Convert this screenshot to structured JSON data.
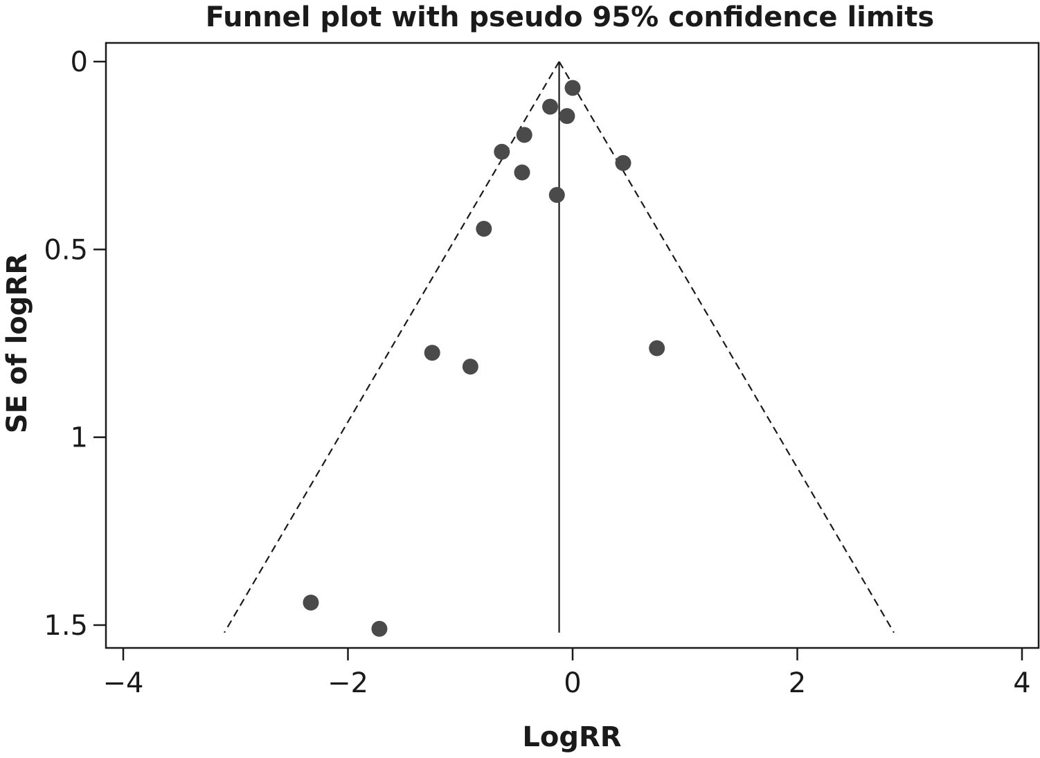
{
  "chart_data": {
    "type": "scatter",
    "title": "Funnel plot with pseudo 95% confidence limits",
    "xlabel": "LogRR",
    "ylabel": "SE of logRR",
    "xlim": [
      -4,
      4
    ],
    "ylim": [
      0,
      1.5
    ],
    "y_reversed": true,
    "x_ticks": [
      -4,
      -2,
      0,
      2,
      4
    ],
    "x_tick_labels": [
      "−4",
      "−2",
      "0",
      "2",
      "4"
    ],
    "y_ticks": [
      0,
      0.5,
      1,
      1.5
    ],
    "y_tick_labels": [
      "0",
      "0.5",
      "1",
      "1.5"
    ],
    "grid": false,
    "colors": {
      "points": "#4a4a4a",
      "lines": "#1a1a1a",
      "axes": "#1a1a1a"
    },
    "pooled_estimate": -0.12,
    "pooled_line_se_range": [
      0,
      1.52
    ],
    "confidence_limits": {
      "style": "dashed",
      "apex": [
        -0.12,
        0
      ],
      "lower_left": [
        -3.1,
        1.52
      ],
      "lower_right": [
        2.86,
        1.52
      ]
    },
    "points": [
      {
        "x": 0.0,
        "y": 0.07
      },
      {
        "x": -0.2,
        "y": 0.12
      },
      {
        "x": -0.05,
        "y": 0.145
      },
      {
        "x": -0.43,
        "y": 0.195
      },
      {
        "x": -0.63,
        "y": 0.24
      },
      {
        "x": 0.45,
        "y": 0.27
      },
      {
        "x": -0.45,
        "y": 0.295
      },
      {
        "x": -0.14,
        "y": 0.355
      },
      {
        "x": -0.79,
        "y": 0.445
      },
      {
        "x": -1.25,
        "y": 0.775
      },
      {
        "x": -0.91,
        "y": 0.812
      },
      {
        "x": 0.75,
        "y": 0.763
      },
      {
        "x": -2.33,
        "y": 1.44
      },
      {
        "x": -1.72,
        "y": 1.51
      }
    ]
  }
}
